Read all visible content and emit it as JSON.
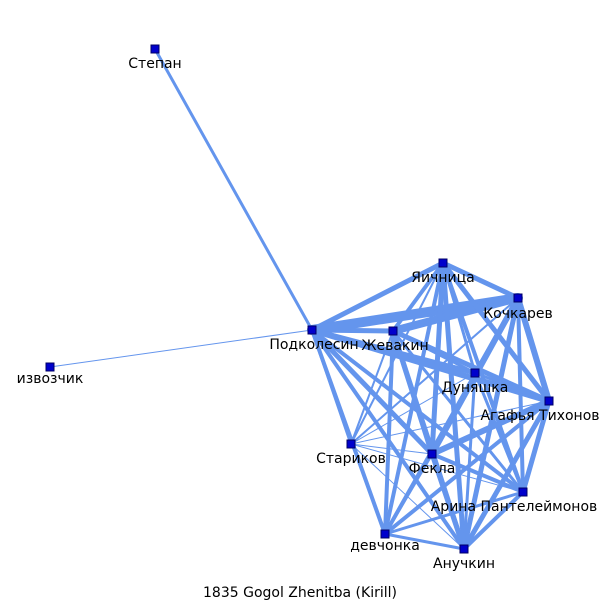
{
  "caption": "1835  Gogol  Zhenitba  (Kirill)",
  "colors": {
    "edge": "#6495ed",
    "node_fill": "#0000cc",
    "node_stroke": "#000066",
    "background": "#ffffff"
  },
  "nodes": [
    {
      "id": "stepan",
      "label": "Степан"
    },
    {
      "id": "podkolesin",
      "label": "Подколесин"
    },
    {
      "id": "zhevakin",
      "label": "Жевакин"
    },
    {
      "id": "izvozchik",
      "label": "извозчик"
    },
    {
      "id": "yaichnitsa",
      "label": "Яичница"
    },
    {
      "id": "kochkarev",
      "label": "Кочкарев"
    },
    {
      "id": "dunyashka",
      "label": "Дуняшка"
    },
    {
      "id": "agafya",
      "label": "Агафья Тихонов"
    },
    {
      "id": "starikov",
      "label": "Стариков"
    },
    {
      "id": "fekla",
      "label": "Фекла"
    },
    {
      "id": "arina",
      "label": "Арина Пантелеймонов"
    },
    {
      "id": "devchonka",
      "label": "девчонка"
    },
    {
      "id": "anuchkin",
      "label": "Анучкин"
    }
  ],
  "edges": [
    {
      "source": "stepan",
      "target": "podkolesin",
      "weight": 3
    },
    {
      "source": "izvozchik",
      "target": "podkolesin",
      "weight": 1
    },
    {
      "source": "podkolesin",
      "target": "zhevakin",
      "weight": 5
    },
    {
      "source": "podkolesin",
      "target": "yaichnitsa",
      "weight": 5
    },
    {
      "source": "podkolesin",
      "target": "kochkarev",
      "weight": 10
    },
    {
      "source": "podkolesin",
      "target": "dunyashka",
      "weight": 5
    },
    {
      "source": "podkolesin",
      "target": "agafya",
      "weight": 6
    },
    {
      "source": "podkolesin",
      "target": "starikov",
      "weight": 3
    },
    {
      "source": "podkolesin",
      "target": "fekla",
      "weight": 5
    },
    {
      "source": "podkolesin",
      "target": "arina",
      "weight": 4
    },
    {
      "source": "podkolesin",
      "target": "devchonka",
      "weight": 4
    },
    {
      "source": "podkolesin",
      "target": "anuchkin",
      "weight": 4
    },
    {
      "source": "zhevakin",
      "target": "yaichnitsa",
      "weight": 4
    },
    {
      "source": "zhevakin",
      "target": "kochkarev",
      "weight": 8
    },
    {
      "source": "zhevakin",
      "target": "dunyashka",
      "weight": 3
    },
    {
      "source": "zhevakin",
      "target": "agafya",
      "weight": 5
    },
    {
      "source": "zhevakin",
      "target": "starikov",
      "weight": 2
    },
    {
      "source": "zhevakin",
      "target": "fekla",
      "weight": 5
    },
    {
      "source": "zhevakin",
      "target": "arina",
      "weight": 3
    },
    {
      "source": "zhevakin",
      "target": "devchonka",
      "weight": 4
    },
    {
      "source": "zhevakin",
      "target": "anuchkin",
      "weight": 5
    },
    {
      "source": "yaichnitsa",
      "target": "kochkarev",
      "weight": 5
    },
    {
      "source": "yaichnitsa",
      "target": "dunyashka",
      "weight": 3
    },
    {
      "source": "yaichnitsa",
      "target": "agafya",
      "weight": 5
    },
    {
      "source": "yaichnitsa",
      "target": "starikov",
      "weight": 2
    },
    {
      "source": "yaichnitsa",
      "target": "fekla",
      "weight": 5
    },
    {
      "source": "yaichnitsa",
      "target": "arina",
      "weight": 4
    },
    {
      "source": "yaichnitsa",
      "target": "devchonka",
      "weight": 4
    },
    {
      "source": "yaichnitsa",
      "target": "anuchkin",
      "weight": 5
    },
    {
      "source": "kochkarev",
      "target": "dunyashka",
      "weight": 4
    },
    {
      "source": "kochkarev",
      "target": "agafya",
      "weight": 6
    },
    {
      "source": "kochkarev",
      "target": "starikov",
      "weight": 2
    },
    {
      "source": "kochkarev",
      "target": "fekla",
      "weight": 6
    },
    {
      "source": "kochkarev",
      "target": "arina",
      "weight": 4
    },
    {
      "source": "kochkarev",
      "target": "devchonka",
      "weight": 4
    },
    {
      "source": "kochkarev",
      "target": "anuchkin",
      "weight": 5
    },
    {
      "source": "dunyashka",
      "target": "agafya",
      "weight": 3
    },
    {
      "source": "dunyashka",
      "target": "starikov",
      "weight": 1
    },
    {
      "source": "dunyashka",
      "target": "fekla",
      "weight": 3
    },
    {
      "source": "dunyashka",
      "target": "arina",
      "weight": 3
    },
    {
      "source": "dunyashka",
      "target": "devchonka",
      "weight": 2
    },
    {
      "source": "dunyashka",
      "target": "anuchkin",
      "weight": 3
    },
    {
      "source": "agafya",
      "target": "starikov",
      "weight": 1
    },
    {
      "source": "agafya",
      "target": "fekla",
      "weight": 6
    },
    {
      "source": "agafya",
      "target": "arina",
      "weight": 5
    },
    {
      "source": "agafya",
      "target": "devchonka",
      "weight": 4
    },
    {
      "source": "agafya",
      "target": "anuchkin",
      "weight": 5
    },
    {
      "source": "starikov",
      "target": "fekla",
      "weight": 1
    },
    {
      "source": "starikov",
      "target": "arina",
      "weight": 1
    },
    {
      "source": "starikov",
      "target": "devchonka",
      "weight": 1
    },
    {
      "source": "starikov",
      "target": "anuchkin",
      "weight": 1
    },
    {
      "source": "fekla",
      "target": "arina",
      "weight": 4
    },
    {
      "source": "fekla",
      "target": "devchonka",
      "weight": 3
    },
    {
      "source": "fekla",
      "target": "anuchkin",
      "weight": 5
    },
    {
      "source": "arina",
      "target": "devchonka",
      "weight": 3
    },
    {
      "source": "arina",
      "target": "anuchkin",
      "weight": 4
    },
    {
      "source": "devchonka",
      "target": "anuchkin",
      "weight": 3
    }
  ]
}
